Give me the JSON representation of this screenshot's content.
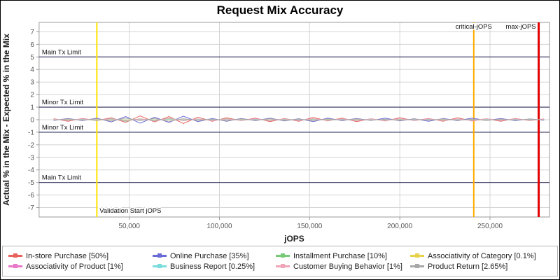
{
  "chart_data": {
    "type": "line",
    "title": "Request Mix Accuracy",
    "xlabel": "jOPS",
    "ylabel": "Actual % in the Mix - Expected % in the Mix",
    "xlim": [
      0,
      283000
    ],
    "ylim": [
      -7.75,
      7.75
    ],
    "x_ticks": [
      50000,
      100000,
      150000,
      200000,
      250000
    ],
    "x_tick_labels": [
      "50,000",
      "100,000",
      "150,000",
      "200,000",
      "250,000"
    ],
    "y_ticks": [
      -7,
      -6,
      -5,
      -4,
      -3,
      -2,
      -1,
      0,
      1,
      2,
      3,
      4,
      5,
      6,
      7
    ],
    "grid": true,
    "legend_position": "bottom",
    "colors": {
      "grid": "#d4d4d4",
      "plot_border": "#9a9a9a",
      "tick": "#9a9a9a",
      "limit_line": "#30305c"
    },
    "x": [
      8000,
      16000,
      24000,
      32000,
      40000,
      48000,
      56000,
      64000,
      72000,
      80000,
      88000,
      96000,
      104000,
      112000,
      120000,
      128000,
      136000,
      144000,
      152000,
      160000,
      168000,
      176000,
      184000,
      192000,
      200000,
      208000,
      216000,
      224000,
      232000,
      240000,
      248000,
      256000,
      264000,
      272000,
      280000
    ],
    "series": [
      {
        "name": "In-store Purchase [50%]",
        "color": "#e8625d",
        "values": [
          0.08,
          -0.12,
          0.1,
          -0.06,
          0.15,
          -0.22,
          0.3,
          -0.18,
          0.25,
          -0.3,
          0.2,
          -0.12,
          0.15,
          -0.08,
          0.12,
          -0.15,
          0.1,
          -0.12,
          0.18,
          -0.1,
          0.12,
          -0.15,
          0.08,
          -0.1,
          0.15,
          -0.08,
          0.1,
          -0.12,
          0.15,
          -0.1,
          0.08,
          -0.12,
          0.1,
          -0.08,
          0.06
        ]
      },
      {
        "name": "Online Purchase [35%]",
        "color": "#6b6bd6",
        "values": [
          -0.06,
          0.1,
          -0.08,
          0.12,
          -0.18,
          0.25,
          -0.28,
          0.2,
          -0.22,
          0.28,
          -0.15,
          0.1,
          -0.12,
          0.1,
          -0.08,
          0.12,
          -0.1,
          0.08,
          -0.15,
          0.12,
          -0.08,
          0.1,
          -0.06,
          0.12,
          -0.1,
          0.08,
          -0.12,
          0.1,
          -0.08,
          0.12,
          -0.06,
          0.1,
          -0.08,
          0.06,
          -0.05
        ]
      },
      {
        "name": "Installment Purchase [10%]",
        "color": "#77c877",
        "values": [
          0.04,
          -0.06,
          0.05,
          -0.08,
          0.1,
          -0.12,
          0.08,
          -0.1,
          0.12,
          -0.08,
          0.06,
          -0.05,
          0.08,
          -0.06,
          0.05,
          -0.08,
          0.06,
          -0.05,
          0.08,
          -0.06,
          0.04,
          -0.06,
          0.05,
          -0.04,
          0.06,
          -0.05,
          0.04,
          -0.06,
          0.05,
          -0.04,
          0.06,
          -0.05,
          0.04,
          -0.05,
          0.03
        ]
      },
      {
        "name": "Associativity of Category [0.1%]",
        "color": "#e8d24a",
        "values": [
          0.01,
          -0.01,
          0.02,
          -0.02,
          0.01,
          -0.02,
          0.02,
          -0.01,
          0.02,
          -0.02,
          0.01,
          -0.01,
          0.02,
          -0.01,
          0.01,
          -0.02,
          0.01,
          -0.01,
          0.02,
          -0.01,
          0.01,
          -0.02,
          0.01,
          -0.01,
          0.02,
          -0.01,
          0.01,
          -0.02,
          0.01,
          -0.01,
          0.02,
          -0.01,
          0.01,
          -0.01,
          0.01
        ]
      },
      {
        "name": "Associativity of Product [1%]",
        "color": "#e878c8",
        "values": [
          0.03,
          -0.04,
          0.05,
          -0.03,
          0.06,
          -0.08,
          0.05,
          -0.06,
          0.08,
          -0.05,
          0.04,
          -0.06,
          0.05,
          -0.04,
          0.06,
          -0.05,
          0.04,
          -0.05,
          0.06,
          -0.04,
          0.05,
          -0.06,
          0.04,
          -0.05,
          0.06,
          -0.04,
          0.05,
          -0.06,
          0.04,
          -0.05,
          0.06,
          -0.04,
          0.05,
          -0.04,
          0.03
        ]
      },
      {
        "name": "Business Report [0.25%]",
        "color": "#7adcdc",
        "values": [
          0.02,
          -0.03,
          0.03,
          -0.02,
          0.04,
          -0.05,
          0.04,
          -0.03,
          0.05,
          -0.04,
          0.03,
          -0.02,
          0.04,
          -0.03,
          0.02,
          -0.04,
          0.03,
          -0.02,
          0.04,
          -0.03,
          0.02,
          -0.04,
          0.03,
          -0.02,
          0.04,
          -0.03,
          0.02,
          -0.04,
          0.03,
          -0.02,
          0.04,
          -0.03,
          0.02,
          -0.03,
          0.02
        ]
      },
      {
        "name": "Customer Buying Behavior [1%]",
        "color": "#f0a6b8",
        "values": [
          0.05,
          -0.06,
          0.07,
          -0.05,
          0.08,
          -0.1,
          0.07,
          -0.08,
          0.1,
          -0.07,
          0.06,
          -0.08,
          0.07,
          -0.06,
          0.08,
          -0.07,
          0.06,
          -0.07,
          0.08,
          -0.06,
          0.07,
          -0.08,
          0.06,
          -0.07,
          0.08,
          -0.06,
          0.07,
          -0.08,
          0.06,
          -0.07,
          0.08,
          -0.06,
          0.07,
          -0.06,
          0.05
        ]
      },
      {
        "name": "Product Return [2.65%]",
        "color": "#a8a8a8",
        "values": [
          -0.04,
          0.06,
          -0.05,
          0.08,
          -0.1,
          0.12,
          -0.08,
          0.1,
          -0.12,
          0.08,
          -0.06,
          0.05,
          -0.08,
          0.06,
          -0.05,
          0.08,
          -0.06,
          0.05,
          -0.08,
          0.06,
          -0.04,
          0.06,
          -0.05,
          0.04,
          -0.06,
          0.05,
          -0.04,
          0.06,
          -0.05,
          0.04,
          -0.06,
          0.05,
          -0.04,
          0.05,
          -0.03
        ]
      }
    ],
    "hlines": [
      {
        "y": 5,
        "label": "Main Tx Limit",
        "color": "#30305c"
      },
      {
        "y": 1,
        "label": "Minor Tx Limit",
        "color": "#30305c"
      },
      {
        "y": -1,
        "label": "Minor Tx Limit",
        "color": "#30305c"
      },
      {
        "y": -5,
        "label": "Main Tx Limit",
        "color": "#30305c"
      }
    ],
    "vlines": [
      {
        "x": 32000,
        "label": "Validation Start jOPS",
        "color": "#ffe400",
        "width": 2,
        "label_pos": "bottom-right"
      },
      {
        "x": 241000,
        "label": "critical-jOPS",
        "color": "#ffaa00",
        "width": 2,
        "label_pos": "top-center"
      },
      {
        "x": 277000,
        "label": "max-jOPS",
        "color": "#e00000",
        "width": 3,
        "label_pos": "top-left"
      }
    ]
  }
}
